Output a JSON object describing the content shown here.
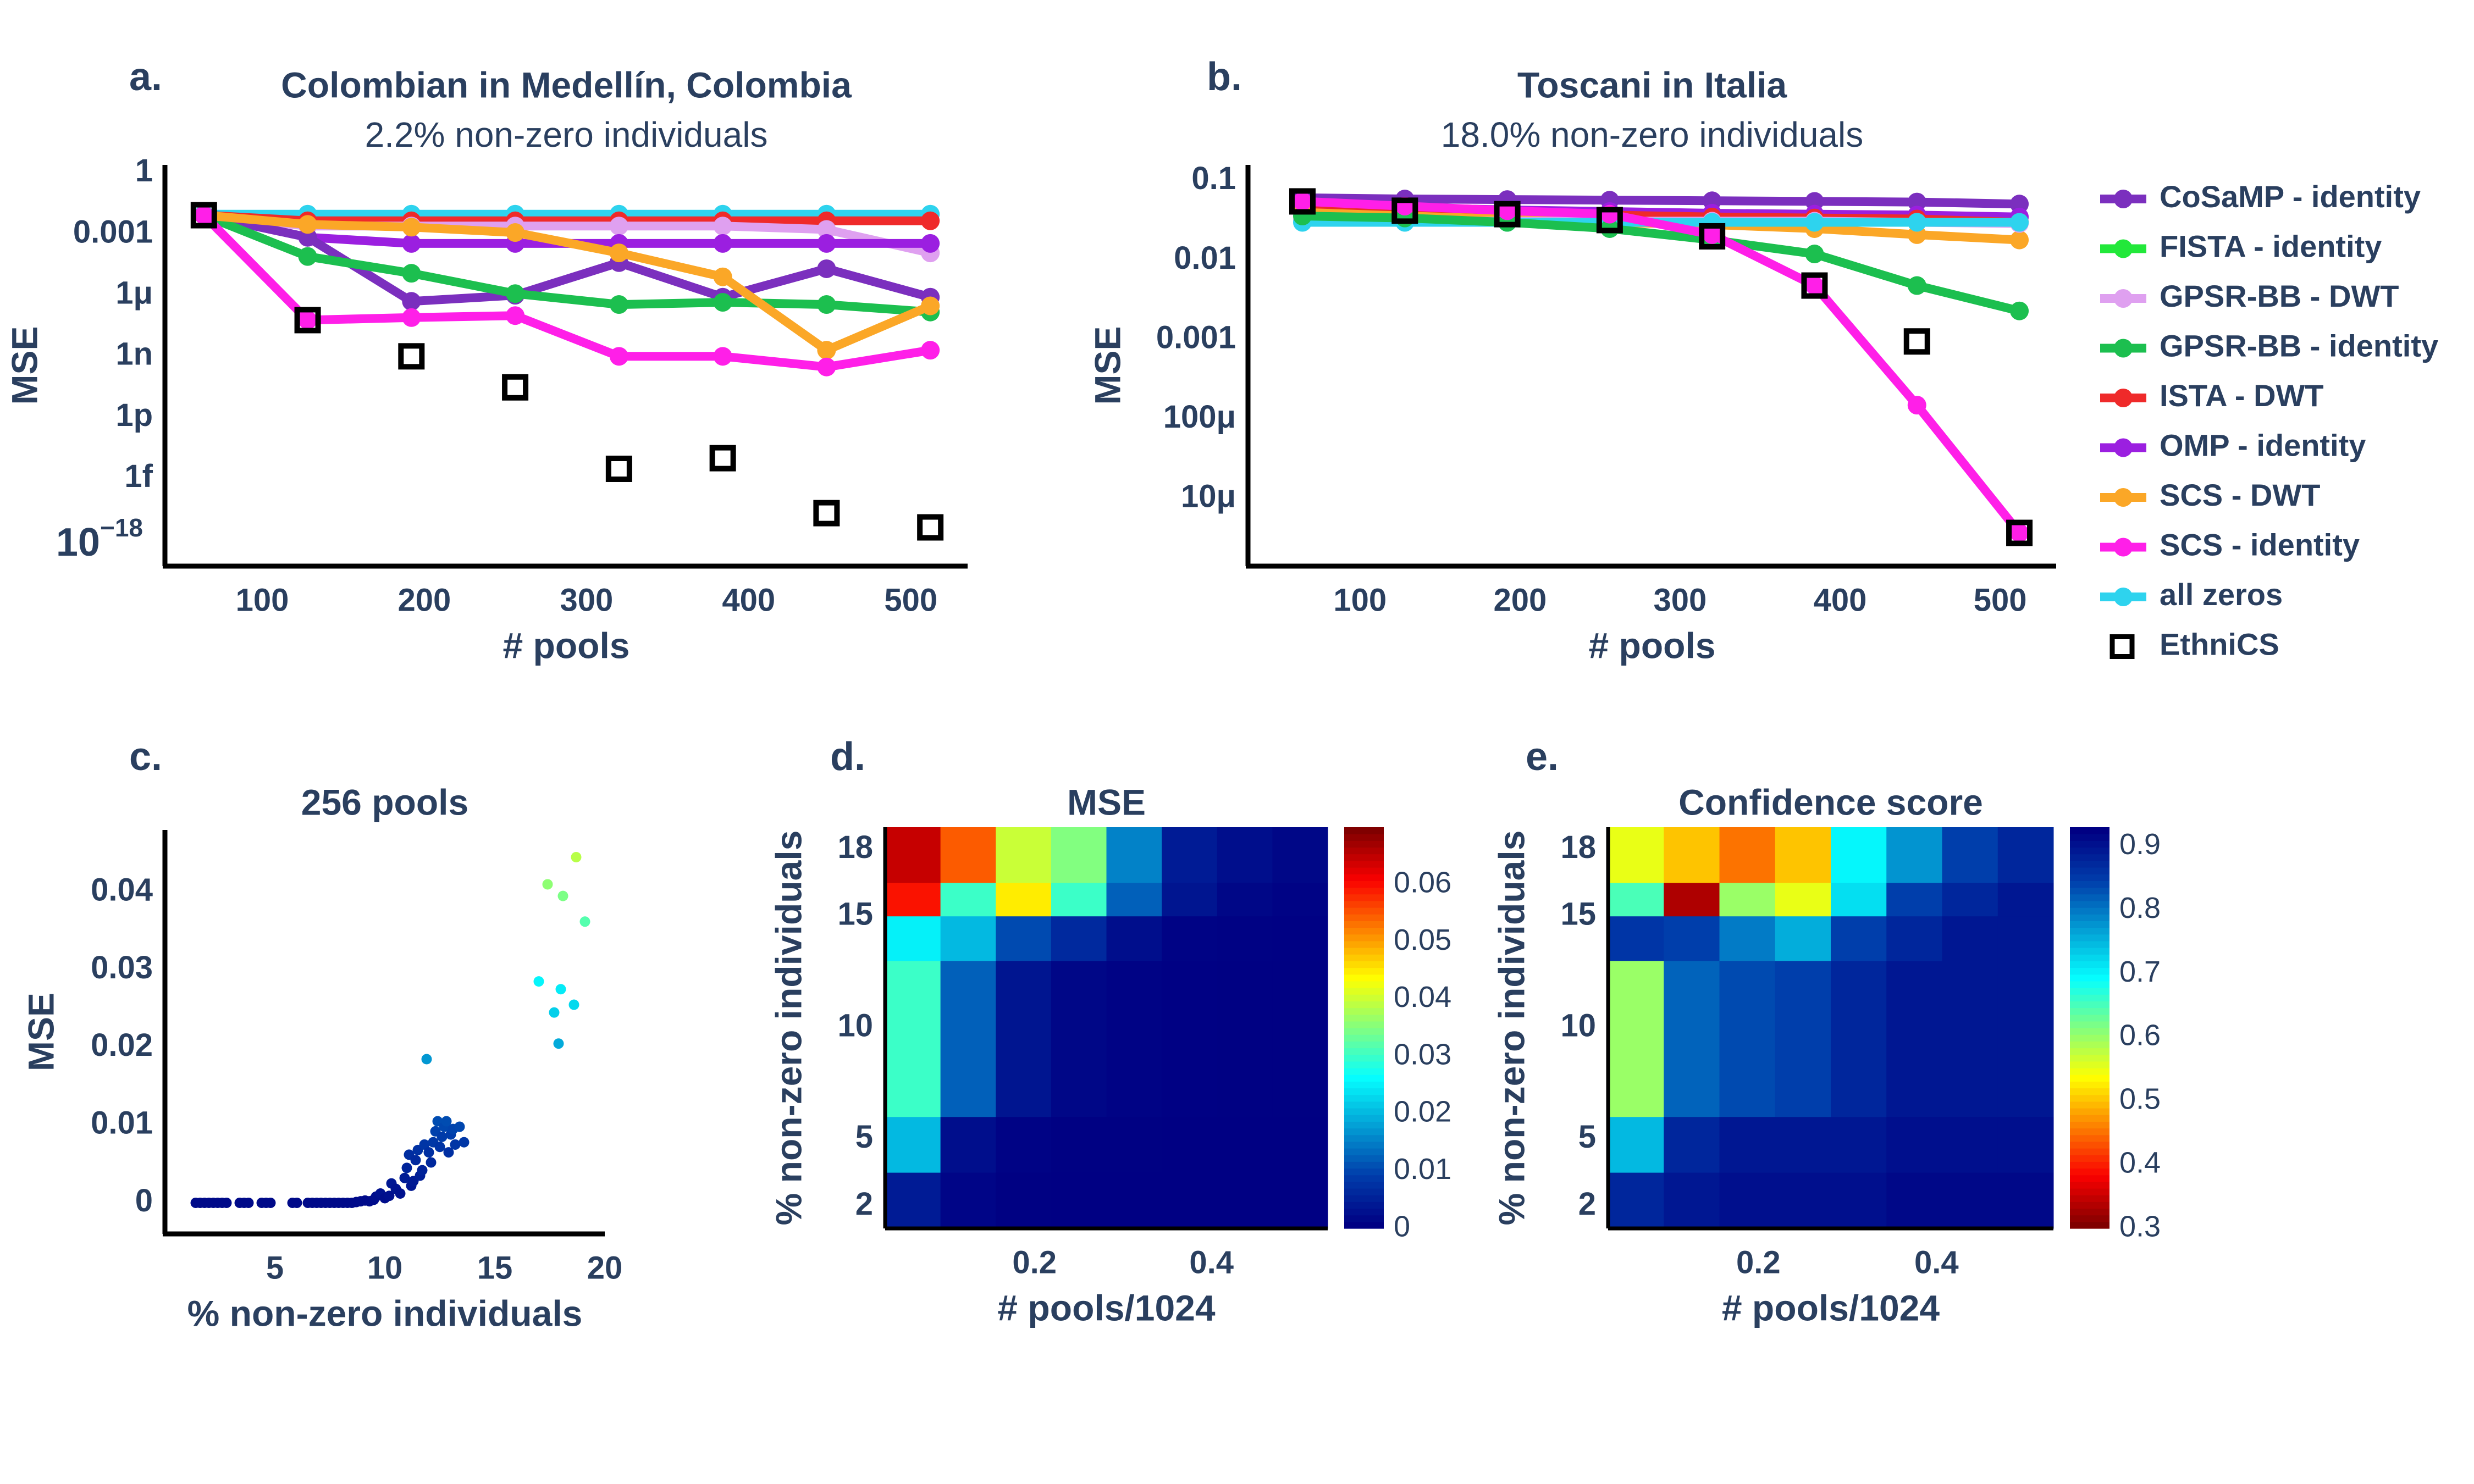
{
  "figure": {
    "panel_labels": {
      "a": "a.",
      "b": "b.",
      "c": "c.",
      "d": "d.",
      "e": "e."
    }
  },
  "colors": {
    "text": "#2a3f5f",
    "CoSaMP - identity": "#7b2fbe",
    "FISTA - identity": "#22e83a",
    "GPSR-BB - DWT": "#dfa0f0",
    "GPSR-BB - identity": "#1cbf4f",
    "ISTA - DWT": "#ef2a2a",
    "OMP - identity": "#9b1fe0",
    "SCS - DWT": "#fba727",
    "SCS - identity": "#ff1fe8",
    "all zeros": "#2ed3ee",
    "EthniCS": "#000000"
  },
  "legend": {
    "items": [
      "CoSaMP - identity",
      "FISTA - identity",
      "GPSR-BB - DWT",
      "GPSR-BB - identity",
      "ISTA - DWT",
      "OMP - identity",
      "SCS - DWT",
      "SCS - identity",
      "all zeros",
      "EthniCS"
    ]
  },
  "chart_data": [
    {
      "id": "a",
      "type": "line",
      "title": "Colombian in Medellín, Colombia",
      "subtitle": "2.2% non-zero individuals",
      "xlabel": "# pools",
      "ylabel": "MSE",
      "yscale": "log",
      "xlim": [
        40,
        535
      ],
      "ylim_log10": [
        -19.3,
        0.4
      ],
      "x_ticks": [
        100,
        200,
        300,
        400,
        500
      ],
      "x_tick_labels": [
        "100",
        "200",
        "300",
        "400",
        "500"
      ],
      "y_ticks_log10": [
        0,
        -3,
        -6,
        -9,
        -12,
        -15,
        -18
      ],
      "y_tick_labels": [
        "1",
        "0.001",
        "1μ",
        "1n",
        "1p",
        "1f",
        "10^-18"
      ],
      "x": [
        64,
        128,
        192,
        256,
        320,
        384,
        448,
        512
      ],
      "series": [
        {
          "name": "all zeros",
          "values": [
            0.0095,
            0.0095,
            0.0095,
            0.0095,
            0.0095,
            0.0095,
            0.0095,
            0.0095
          ]
        },
        {
          "name": "ISTA - DWT",
          "values": [
            0.0085,
            0.0045,
            0.0045,
            0.0045,
            0.0045,
            0.0045,
            0.0045,
            0.0045
          ]
        },
        {
          "name": "GPSR-BB - DWT",
          "values": [
            0.0085,
            0.0025,
            0.0025,
            0.0025,
            0.0025,
            0.0025,
            0.0017,
            0.00012
          ]
        },
        {
          "name": "OMP - identity",
          "values": [
            0.0085,
            0.0007,
            0.00035,
            0.00035,
            0.00035,
            0.00035,
            0.00035,
            0.00035
          ]
        },
        {
          "name": "CoSaMP - identity",
          "values": [
            0.0085,
            0.0007,
            5e-07,
            1e-06,
            4e-05,
            8e-07,
            2e-05,
            8e-07
          ]
        },
        {
          "name": "GPSR-BB - identity",
          "values": [
            0.0085,
            8e-05,
            1.2e-05,
            1.2e-06,
            3.5e-07,
            4.5e-07,
            3.5e-07,
            1.5e-07
          ]
        },
        {
          "name": "SCS - DWT",
          "values": [
            0.0085,
            0.003,
            0.0022,
            0.0012,
            0.00012,
            8e-06,
            2e-09,
            3e-07
          ]
        },
        {
          "name": "SCS - identity",
          "values": [
            0.0085,
            6e-08,
            8e-08,
            1e-07,
            1e-09,
            1e-09,
            3e-10,
            2e-09
          ]
        },
        {
          "name": "EthniCS",
          "values": [
            0.0085,
            6e-08,
            1e-09,
            3e-11,
            3e-15,
            1e-14,
            2e-17,
            4e-18
          ]
        }
      ]
    },
    {
      "id": "b",
      "type": "line",
      "title": "Toscani in Italia",
      "subtitle": "18.0% non-zero individuals",
      "xlabel": "# pools",
      "ylabel": "MSE",
      "yscale": "log",
      "xlim": [
        30,
        535
      ],
      "ylim_log10": [
        -5.85,
        -0.8
      ],
      "x_ticks": [
        100,
        200,
        300,
        400,
        500
      ],
      "x_tick_labels": [
        "100",
        "200",
        "300",
        "400",
        "500"
      ],
      "y_ticks_log10": [
        -1,
        -2,
        -3,
        -4,
        -5
      ],
      "y_tick_labels": [
        "0.1",
        "0.01",
        "0.001",
        "100μ",
        "10μ"
      ],
      "x": [
        64,
        128,
        192,
        256,
        320,
        384,
        448,
        512
      ],
      "series": [
        {
          "name": "CoSaMP - identity",
          "values": [
            0.061,
            0.059,
            0.058,
            0.057,
            0.056,
            0.055,
            0.054,
            0.051
          ]
        },
        {
          "name": "OMP - identity",
          "values": [
            0.05,
            0.046,
            0.043,
            0.041,
            0.039,
            0.038,
            0.037,
            0.035
          ]
        },
        {
          "name": "ISTA - DWT",
          "values": [
            0.045,
            0.041,
            0.039,
            0.037,
            0.035,
            0.034,
            0.033,
            0.03
          ]
        },
        {
          "name": "SCS - DWT",
          "values": [
            0.04,
            0.036,
            0.033,
            0.03,
            0.028,
            0.025,
            0.021,
            0.018
          ]
        },
        {
          "name": "GPSR-BB - DWT",
          "values": [
            0.032,
            0.031,
            0.031,
            0.031,
            0.031,
            0.031,
            0.03,
            0.029
          ]
        },
        {
          "name": "all zeros",
          "values": [
            0.03,
            0.03,
            0.03,
            0.03,
            0.03,
            0.03,
            0.03,
            0.03
          ]
        },
        {
          "name": "GPSR-BB - identity",
          "values": [
            0.036,
            0.034,
            0.03,
            0.025,
            0.018,
            0.012,
            0.0048,
            0.0023
          ]
        },
        {
          "name": "SCS - identity",
          "values": [
            0.055,
            0.048,
            0.042,
            0.038,
            0.021,
            0.0048,
            0.00015,
            3.7e-06
          ]
        },
        {
          "name": "EthniCS",
          "values": [
            0.055,
            0.042,
            0.038,
            0.032,
            0.02,
            0.0048,
            0.00095,
            3.7e-06
          ]
        }
      ]
    },
    {
      "id": "c",
      "type": "scatter",
      "title": "256 pools",
      "xlabel": "% non-zero individuals",
      "ylabel": "MSE",
      "xlim": [
        0,
        20
      ],
      "ylim": [
        -0.004,
        0.048
      ],
      "x_ticks": [
        5,
        10,
        15,
        20
      ],
      "x_tick_labels": [
        "5",
        "10",
        "15",
        "20"
      ],
      "y_ticks": [
        0,
        0.01,
        0.02,
        0.03,
        0.04
      ],
      "y_tick_labels": [
        "0",
        "0.01",
        "0.02",
        "0.03",
        "0.04"
      ],
      "color_note": "points coloured by MSE (jet)",
      "points": [
        [
          1.4,
          0
        ],
        [
          1.6,
          0
        ],
        [
          1.8,
          0
        ],
        [
          2,
          0
        ],
        [
          2.2,
          0
        ],
        [
          2.4,
          0
        ],
        [
          2.6,
          0
        ],
        [
          2.8,
          0
        ],
        [
          3.4,
          0
        ],
        [
          3.6,
          0
        ],
        [
          3.8,
          0
        ],
        [
          4.4,
          0
        ],
        [
          4.6,
          0
        ],
        [
          4.8,
          0
        ],
        [
          5.8,
          0
        ],
        [
          6,
          0
        ],
        [
          6.5,
          0
        ],
        [
          6.7,
          0
        ],
        [
          6.9,
          0
        ],
        [
          7.1,
          0
        ],
        [
          7.3,
          0
        ],
        [
          7.5,
          0
        ],
        [
          7.7,
          0
        ],
        [
          7.9,
          0
        ],
        [
          8.1,
          0
        ],
        [
          8.3,
          0
        ],
        [
          8.5,
          0
        ],
        [
          8.7,
          0.0001
        ],
        [
          8.9,
          0.0002
        ],
        [
          9.1,
          0.0003
        ],
        [
          9.3,
          0.0002
        ],
        [
          9.5,
          0.0004
        ],
        [
          9.6,
          0.0008
        ],
        [
          9.8,
          0.0012
        ],
        [
          10,
          0.0006
        ],
        [
          10.2,
          0.0009
        ],
        [
          10.3,
          0.0025
        ],
        [
          10.5,
          0.0018
        ],
        [
          10.7,
          0.0012
        ],
        [
          10.9,
          0.0032
        ],
        [
          11,
          0.0045
        ],
        [
          11.1,
          0.0062
        ],
        [
          11.2,
          0.0022
        ],
        [
          11.3,
          0.0028
        ],
        [
          11.4,
          0.0055
        ],
        [
          11.5,
          0.0068
        ],
        [
          11.6,
          0.0035
        ],
        [
          11.7,
          0.0042
        ],
        [
          11.8,
          0.0075
        ],
        [
          11.9,
          0.0185
        ],
        [
          12,
          0.0065
        ],
        [
          12.1,
          0.0052
        ],
        [
          12.2,
          0.0078
        ],
        [
          12.3,
          0.0092
        ],
        [
          12.4,
          0.0105
        ],
        [
          12.5,
          0.0072
        ],
        [
          12.6,
          0.0085
        ],
        [
          12.7,
          0.0098
        ],
        [
          12.8,
          0.0105
        ],
        [
          12.9,
          0.0065
        ],
        [
          13,
          0.0088
        ],
        [
          13.1,
          0.0095
        ],
        [
          13.2,
          0.0075
        ],
        [
          13.4,
          0.0098
        ],
        [
          13.6,
          0.0078
        ],
        [
          17,
          0.0285
        ],
        [
          17.4,
          0.041
        ],
        [
          17.7,
          0.0245
        ],
        [
          17.9,
          0.0205
        ],
        [
          18,
          0.0275
        ],
        [
          18.1,
          0.0395
        ],
        [
          18.6,
          0.0255
        ],
        [
          18.7,
          0.0445
        ],
        [
          19.1,
          0.0362
        ]
      ]
    },
    {
      "id": "d",
      "type": "heatmap",
      "title": "MSE",
      "xlabel": "# pools/1024",
      "ylabel": "% non-zero individuals",
      "x_ticks": [
        0.2,
        0.4
      ],
      "x_tick_labels": [
        "0.2",
        "0.4"
      ],
      "y_ticks": [
        2,
        5,
        10,
        15,
        18
      ],
      "y_tick_labels": [
        "2",
        "5",
        "10",
        "15",
        "18"
      ],
      "colorscale": "jet",
      "colorbar_range": [
        0,
        0.07
      ],
      "colorbar_ticks": [
        0,
        0.01,
        0.02,
        0.03,
        0.04,
        0.05,
        0.06
      ],
      "colorbar_tick_labels": [
        "0",
        "0.01",
        "0.02",
        "0.03",
        "0.04",
        "0.05",
        "0.06"
      ],
      "columns_x": [
        0.0625,
        0.125,
        0.1875,
        0.25,
        0.3125,
        0.375,
        0.4375,
        0.5
      ],
      "bands": [
        {
          "from": 16.5,
          "to": 19,
          "values": [
            0.065,
            0.055,
            0.04,
            0.035,
            0.015,
            0.004,
            0.002,
            0.001
          ]
        },
        {
          "from": 15,
          "to": 16.5,
          "values": [
            0.06,
            0.03,
            0.045,
            0.03,
            0.012,
            0.003,
            0.001,
            0.0005
          ]
        },
        {
          "from": 13,
          "to": 15,
          "values": [
            0.025,
            0.02,
            0.01,
            0.006,
            0.002,
            0.0005,
            0.0003,
            0.0002
          ]
        },
        {
          "from": 6,
          "to": 13,
          "values": [
            0.03,
            0.012,
            0.003,
            0.001,
            0.0004,
            0.0002,
            0.0001,
            0.0001
          ]
        },
        {
          "from": 3.5,
          "to": 6,
          "values": [
            0.02,
            0.002,
            0.0004,
            0.0001,
            0.0001,
            0,
            0,
            0
          ]
        },
        {
          "from": 1,
          "to": 3.5,
          "values": [
            0.004,
            0.0008,
            0.0001,
            0,
            0,
            0,
            0,
            0
          ]
        }
      ]
    },
    {
      "id": "e",
      "type": "heatmap",
      "title": "Confidence score",
      "xlabel": "# pools/1024",
      "ylabel": "% non-zero individuals",
      "x_ticks": [
        0.2,
        0.4
      ],
      "x_tick_labels": [
        "0.2",
        "0.4"
      ],
      "y_ticks": [
        2,
        5,
        10,
        15,
        18
      ],
      "y_tick_labels": [
        "2",
        "5",
        "10",
        "15",
        "18"
      ],
      "colorscale": "jet_r",
      "colorbar_range": [
        0.3,
        0.93
      ],
      "colorbar_ticks": [
        0.3,
        0.4,
        0.5,
        0.6,
        0.7,
        0.8,
        0.9
      ],
      "colorbar_tick_labels": [
        "0.3",
        "0.4",
        "0.5",
        "0.6",
        "0.7",
        "0.8",
        "0.9"
      ],
      "columns_x": [
        0.0625,
        0.125,
        0.1875,
        0.25,
        0.3125,
        0.375,
        0.4375,
        0.5
      ],
      "bands": [
        {
          "from": 16.5,
          "to": 19,
          "values": [
            0.55,
            0.5,
            0.45,
            0.5,
            0.7,
            0.78,
            0.85,
            0.88
          ]
        },
        {
          "from": 15,
          "to": 16.5,
          "values": [
            0.65,
            0.33,
            0.6,
            0.55,
            0.72,
            0.85,
            0.88,
            0.9
          ]
        },
        {
          "from": 13,
          "to": 15,
          "values": [
            0.86,
            0.85,
            0.8,
            0.76,
            0.85,
            0.88,
            0.9,
            0.9
          ]
        },
        {
          "from": 6,
          "to": 13,
          "values": [
            0.6,
            0.82,
            0.84,
            0.85,
            0.88,
            0.9,
            0.9,
            0.9
          ]
        },
        {
          "from": 3.5,
          "to": 6,
          "values": [
            0.75,
            0.88,
            0.9,
            0.9,
            0.9,
            0.91,
            0.91,
            0.91
          ]
        },
        {
          "from": 1,
          "to": 3.5,
          "values": [
            0.88,
            0.9,
            0.91,
            0.91,
            0.91,
            0.92,
            0.92,
            0.92
          ]
        }
      ]
    }
  ]
}
